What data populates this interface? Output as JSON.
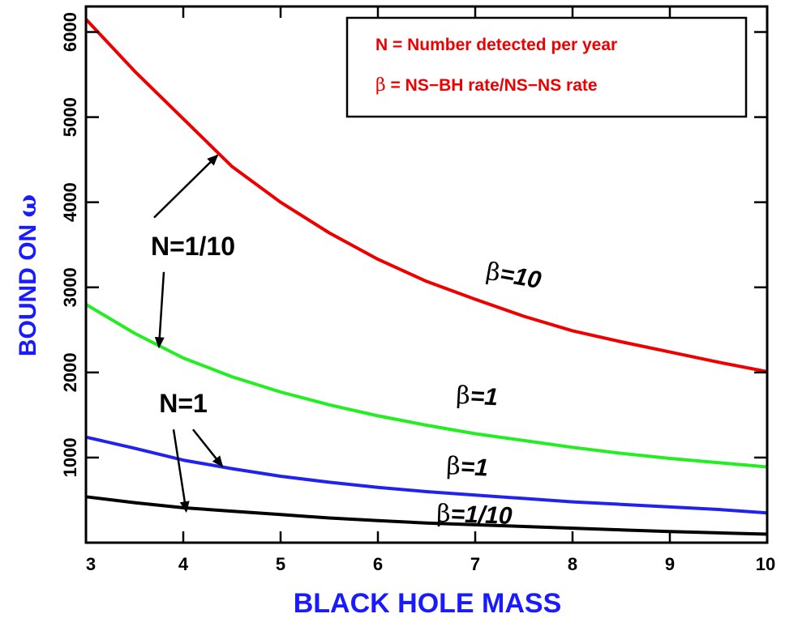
{
  "chart_data": {
    "type": "line",
    "xlabel": "BLACK HOLE MASS",
    "ylabel_prefix": "BOUND ON ",
    "ylabel_symbol": "ω",
    "xlim": [
      3,
      10
    ],
    "ylim": [
      0,
      6300
    ],
    "x_ticks": [
      3,
      4,
      5,
      6,
      7,
      8,
      9,
      10
    ],
    "x_tick_labels": [
      "3",
      "4",
      "5",
      "6",
      "7",
      "8",
      "9",
      "10"
    ],
    "y_ticks": [
      1000,
      2000,
      3000,
      4000,
      5000,
      6000
    ],
    "y_tick_labels": [
      "1000",
      "2000",
      "3000",
      "4000",
      "5000",
      "6000"
    ],
    "grid": false,
    "legend": {
      "placement": "top-right",
      "lines": [
        {
          "symbol": "",
          "text": "N = Number detected per year"
        },
        {
          "symbol": "β",
          "text": " = NS−BH rate/NS−NS rate"
        }
      ]
    },
    "series": [
      {
        "color": "#ee0000",
        "x": [
          3.0,
          3.5,
          4.0,
          4.5,
          5.0,
          5.5,
          6.0,
          6.5,
          7.0,
          7.5,
          8.0,
          8.5,
          9.0,
          9.5,
          10.0
        ],
        "y": [
          6150,
          5540,
          4980,
          4420,
          4000,
          3640,
          3330,
          3070,
          2860,
          2660,
          2490,
          2360,
          2240,
          2120,
          2010
        ]
      },
      {
        "color": "#22ee22",
        "x": [
          3.0,
          3.5,
          4.0,
          4.5,
          5.0,
          5.5,
          6.0,
          6.5,
          7.0,
          7.5,
          8.0,
          8.5,
          9.0,
          9.5,
          10.0
        ],
        "y": [
          2800,
          2460,
          2170,
          1950,
          1770,
          1620,
          1490,
          1380,
          1280,
          1200,
          1120,
          1050,
          990,
          940,
          890
        ]
      },
      {
        "color": "#2222ee",
        "x": [
          3.0,
          3.5,
          4.0,
          4.5,
          5.0,
          5.5,
          6.0,
          6.5,
          7.0,
          7.5,
          8.0,
          8.5,
          9.0,
          9.5,
          10.0
        ],
        "y": [
          1240,
          1110,
          970,
          870,
          780,
          710,
          650,
          600,
          560,
          520,
          480,
          450,
          420,
          390,
          350
        ]
      },
      {
        "color": "#000000",
        "x": [
          3.0,
          3.5,
          4.0,
          4.5,
          5.0,
          5.5,
          6.0,
          6.5,
          7.0,
          7.5,
          8.0,
          8.5,
          9.0,
          9.5,
          10.0
        ],
        "y": [
          540,
          470,
          410,
          370,
          330,
          290,
          260,
          230,
          210,
          190,
          170,
          150,
          130,
          115,
          100
        ]
      }
    ],
    "annotations": [
      {
        "text": "N=1/10",
        "x": 4.1,
        "y": 3380,
        "anchor": "middle"
      },
      {
        "text": "N=1",
        "x": 4.0,
        "y": 1530,
        "anchor": "middle"
      }
    ],
    "curve_labels": [
      {
        "beta": "β",
        "text": "=10",
        "x": 7.1,
        "y": 3100,
        "rotate": 10
      },
      {
        "beta": "β",
        "text": "=1",
        "x": 6.8,
        "y": 1640,
        "rotate": 3
      },
      {
        "beta": "β",
        "text": "=1",
        "x": 6.7,
        "y": 810,
        "rotate": 3
      },
      {
        "beta": "β",
        "text": "=1/10",
        "x": 6.6,
        "y": 250,
        "rotate": 2
      }
    ],
    "arrows": [
      {
        "from": [
          3.7,
          3820
        ],
        "to": [
          4.35,
          4550
        ]
      },
      {
        "from": [
          3.8,
          3180
        ],
        "to": [
          3.75,
          2300
        ]
      },
      {
        "from": [
          4.1,
          1330
        ],
        "to": [
          4.4,
          900
        ]
      },
      {
        "from": [
          3.9,
          1330
        ],
        "to": [
          4.03,
          370
        ]
      }
    ]
  }
}
